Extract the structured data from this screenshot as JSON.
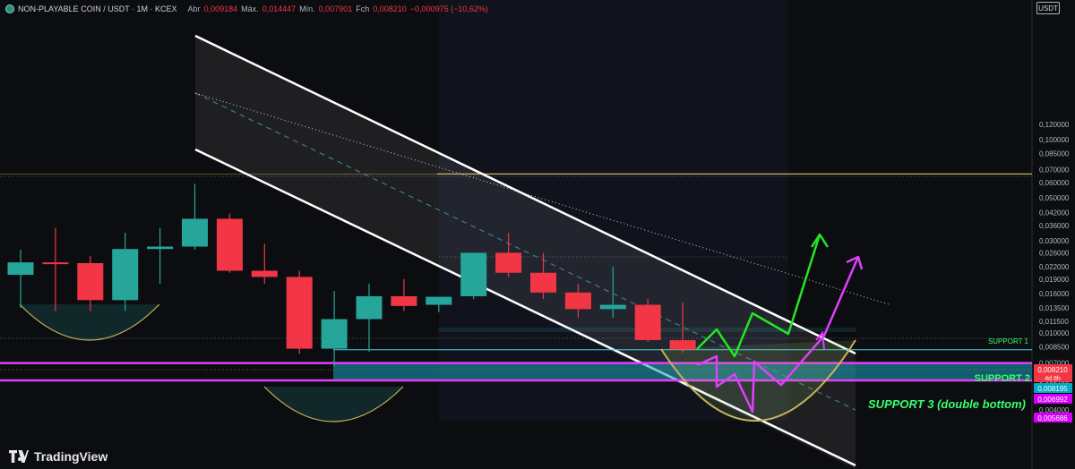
{
  "header": {
    "symbol": "NON-PLAYABLE COIN / USDT · 1M · KCEX",
    "open_label": "Abr",
    "open_value": "0,009184",
    "high_label": "Máx.",
    "high_value": "0,014447",
    "low_label": "Mín.",
    "low_value": "0,007901",
    "close_label": "Fch",
    "close_value": "0,008210",
    "change_value": "−0,000975 (−10,62%)"
  },
  "currency_button": "USDT",
  "brand": "TradingView",
  "colors": {
    "up": "#26a69a",
    "down": "#f23645",
    "channel": "#ffffff",
    "green_arrow": "#22e622",
    "magenta": "#e040fb",
    "support_cyan": "#4dd0e1",
    "yellow_line": "#c8b45a",
    "support_text": "#39ff6e",
    "support3_zone": "#1aa3b8"
  },
  "chart_data": {
    "type": "candlestick",
    "timeframe": "1M",
    "y_scale": "log",
    "y_ticks": [
      "0,120000",
      "0,100000",
      "0,085000",
      "0,070000",
      "0,060000",
      "0,050000",
      "0,042000",
      "0,036000",
      "0,030000",
      "0,026000",
      "0,022000",
      "0,019000",
      "0,016000",
      "0,013500",
      "0,011500",
      "0,010000",
      "0,008500",
      "0,007000",
      "0,005400",
      "0,004700",
      "0,004000"
    ],
    "candles": [
      {
        "o": 0.02,
        "h": 0.027,
        "l": 0.0135,
        "c": 0.0232
      },
      {
        "o": 0.0232,
        "h": 0.035,
        "l": 0.013,
        "c": 0.0229
      },
      {
        "o": 0.023,
        "h": 0.025,
        "l": 0.013,
        "c": 0.0148
      },
      {
        "o": 0.0148,
        "h": 0.033,
        "l": 0.013,
        "c": 0.0272
      },
      {
        "o": 0.0272,
        "h": 0.035,
        "l": 0.018,
        "c": 0.028
      },
      {
        "o": 0.028,
        "h": 0.059,
        "l": 0.027,
        "c": 0.039
      },
      {
        "o": 0.039,
        "h": 0.0415,
        "l": 0.0205,
        "c": 0.021
      },
      {
        "o": 0.021,
        "h": 0.029,
        "l": 0.018,
        "c": 0.0195
      },
      {
        "o": 0.0195,
        "h": 0.021,
        "l": 0.0078,
        "c": 0.0083
      },
      {
        "o": 0.0083,
        "h": 0.0165,
        "l": 0.0067,
        "c": 0.0118
      },
      {
        "o": 0.0118,
        "h": 0.018,
        "l": 0.008,
        "c": 0.0155
      },
      {
        "o": 0.0155,
        "h": 0.019,
        "l": 0.013,
        "c": 0.0138
      },
      {
        "o": 0.014,
        "h": 0.015,
        "l": 0.0128,
        "c": 0.0154
      },
      {
        "o": 0.0155,
        "h": 0.026,
        "l": 0.015,
        "c": 0.026
      },
      {
        "o": 0.026,
        "h": 0.033,
        "l": 0.0195,
        "c": 0.0205
      },
      {
        "o": 0.0205,
        "h": 0.026,
        "l": 0.015,
        "c": 0.0162
      },
      {
        "o": 0.0162,
        "h": 0.018,
        "l": 0.012,
        "c": 0.0133
      },
      {
        "o": 0.0133,
        "h": 0.022,
        "l": 0.012,
        "c": 0.014
      },
      {
        "o": 0.014,
        "h": 0.015,
        "l": 0.009,
        "c": 0.0092
      },
      {
        "o": 0.009184,
        "h": 0.014447,
        "l": 0.007901,
        "c": 0.00821
      }
    ],
    "levels": {
      "yellow_resistance": 0.0665,
      "support_1": [
        0.0102,
        0.0106
      ],
      "support_2": 0.0082,
      "support_3_zone": [
        0.00569,
        0.00699
      ]
    },
    "labels": {
      "support_1": "SUPPORT 1",
      "support_2": "SUPPORT 2",
      "support_3": "SUPPORT 3 (double bottom)"
    },
    "price_tags": [
      {
        "text": "0,008210",
        "sub": "4d 8h",
        "color": "#f23645",
        "value": 0.00821
      },
      {
        "text": "0,008195",
        "color": "#00acc1",
        "value": 0.008195
      },
      {
        "text": "0,006992",
        "color": "#d500f9",
        "value": 0.006992
      },
      {
        "text": "0,005686",
        "color": "#d500f9",
        "value": 0.005686
      }
    ]
  }
}
